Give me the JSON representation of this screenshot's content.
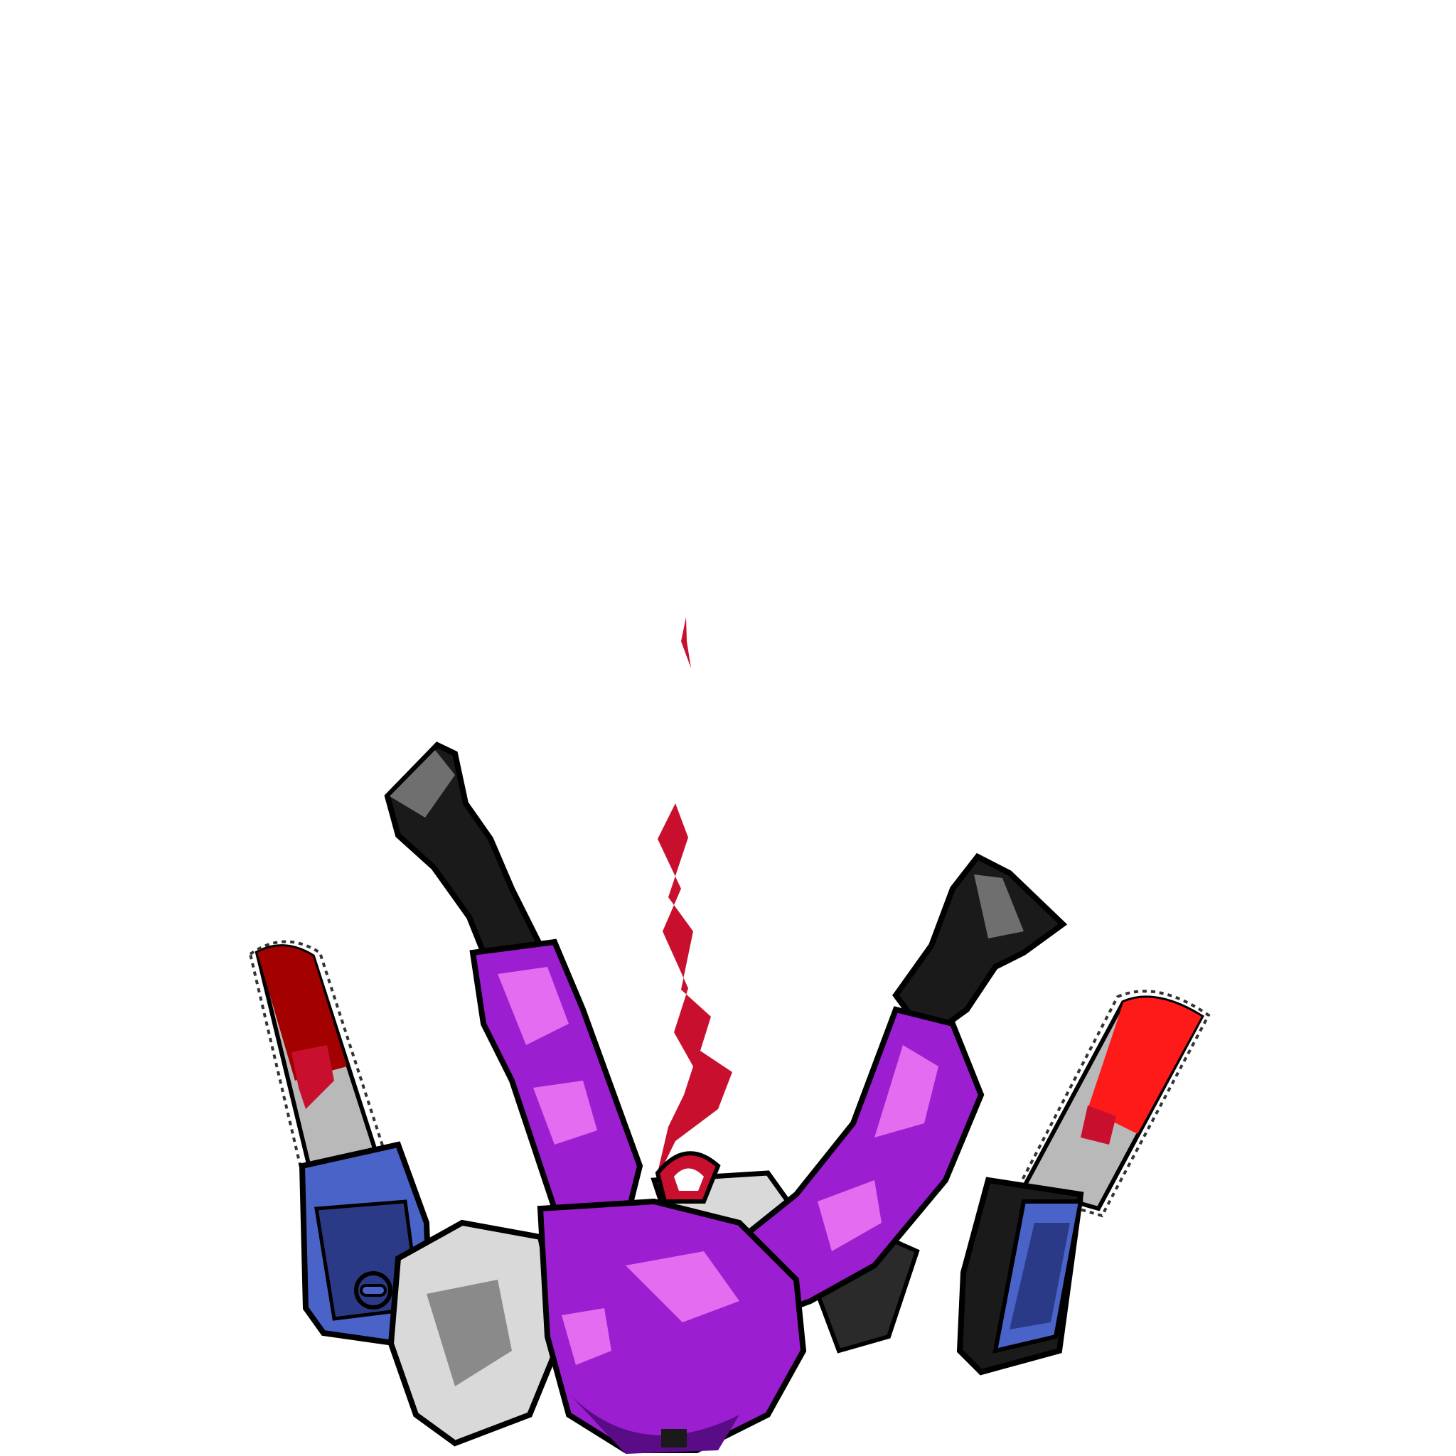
{
  "scene": {
    "subject": "falling-figure-with-twin-chainsaws",
    "background_color": "#ffffff",
    "colors": {
      "suit_purple": "#9b1fd1",
      "suit_highlight": "#e46cf0",
      "suit_shadow": "#5a0b86",
      "boot_black": "#1a1a1a",
      "boot_gray": "#6f6f6f",
      "blood_red": "#c8102e",
      "blade_red": "#ff1a1a",
      "blade_dark_red": "#a30000",
      "blade_steel": "#b9b9b9",
      "chainsaw_blue": "#4a63c9",
      "chainsaw_blue_dark": "#2b3a86",
      "armor_gray": "#d9d9d9",
      "outline": "#000000"
    },
    "icons": [
      "chainsaw-left-icon",
      "chainsaw-right-icon",
      "blood-streak-icon"
    ]
  }
}
